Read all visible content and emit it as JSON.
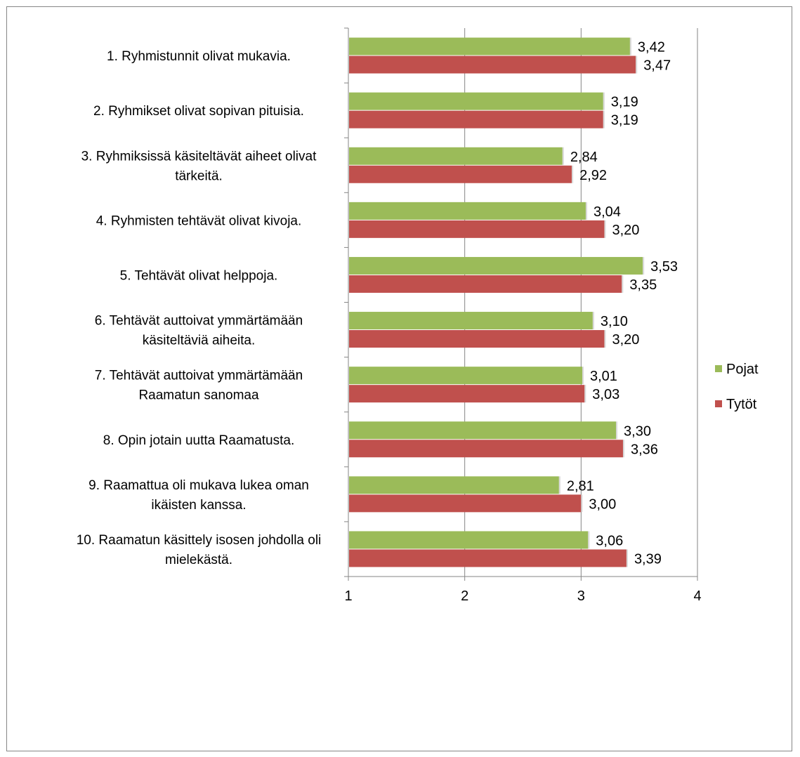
{
  "chart_data": {
    "type": "bar",
    "orientation": "horizontal",
    "categories": [
      [
        "1. Ryhmistunnit olivat mukavia."
      ],
      [
        "2. Ryhmikset olivat sopivan pituisia."
      ],
      [
        "3. Ryhmiksissä käsiteltävät aiheet olivat",
        "tärkeitä."
      ],
      [
        "4. Ryhmisten tehtävät olivat kivoja."
      ],
      [
        "5. Tehtävät olivat helppoja."
      ],
      [
        "6. Tehtävät auttoivat ymmärtämään",
        "käsiteltäviä aiheita."
      ],
      [
        "7. Tehtävät auttoivat ymmärtämään",
        "Raamatun sanomaa"
      ],
      [
        "8. Opin jotain uutta Raamatusta."
      ],
      [
        "9. Raamattua oli mukava lukea  oman",
        "ikäisten kanssa."
      ],
      [
        "10. Raamatun käsittely isosen johdolla oli",
        "mielekästä."
      ]
    ],
    "series": [
      {
        "name": "Pojat",
        "color": "#9BBB59",
        "values": [
          3.42,
          3.19,
          2.84,
          3.04,
          3.53,
          3.1,
          3.01,
          3.3,
          2.81,
          3.06
        ],
        "labels": [
          "3,42",
          "3,19",
          "2,84",
          "3,04",
          "3,53",
          "3,10",
          "3,01",
          "3,30",
          "2,81",
          "3,06"
        ]
      },
      {
        "name": "Tytöt",
        "color": "#C0504D",
        "values": [
          3.47,
          3.19,
          2.92,
          3.2,
          3.35,
          3.2,
          3.03,
          3.36,
          3.0,
          3.39
        ],
        "labels": [
          "3,47",
          "3,19",
          "2,92",
          "3,20",
          "3,35",
          "3,20",
          "3,03",
          "3,36",
          "3,00",
          "3,39"
        ]
      }
    ],
    "xlim": [
      1,
      4
    ],
    "xticks": [
      "1",
      "2",
      "3",
      "4"
    ],
    "grid": true,
    "legend_position": "right"
  }
}
